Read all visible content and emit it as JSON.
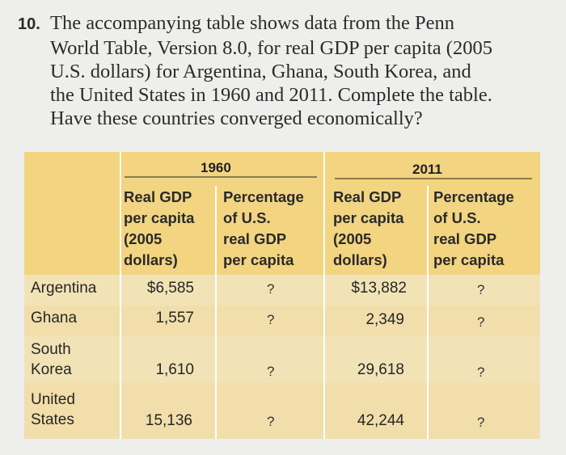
{
  "question": {
    "number": "10.",
    "lines": [
      "The accompanying table shows data from the Penn",
      "World Table, Version 8.0, for real GDP per capita (2005",
      "U.S. dollars) for Argentina, Ghana, South Korea, and",
      "the United States in 1960 and 2011. Complete the table.",
      "Have these countries converged economically?"
    ]
  },
  "table": {
    "years": [
      "1960",
      "2011"
    ],
    "columns": [
      "Real GDP\nper capita\n(2005\ndollars)",
      "Percentage\nof U.S.\nreal GDP\nper capita",
      "Real GDP\nper capita\n(2005\ndollars)",
      "Percentage\nof U.S.\nreal GDP\nper capita"
    ],
    "rows": [
      {
        "country": "Argentina",
        "gdp1960": "$6,585",
        "pct1960": "?",
        "gdp2011": "$13,882",
        "pct2011": "?"
      },
      {
        "country": "Ghana",
        "gdp1960": "1,557",
        "pct1960": "?",
        "gdp2011": "2,349",
        "pct2011": "?"
      },
      {
        "country": "South\nKorea",
        "gdp1960": "1,610",
        "pct1960": "?",
        "gdp2011": "29,618",
        "pct2011": "?"
      },
      {
        "country": "United\nStates",
        "gdp1960": "15,136",
        "pct1960": "?",
        "gdp2011": "42,244",
        "pct2011": "?"
      }
    ]
  }
}
